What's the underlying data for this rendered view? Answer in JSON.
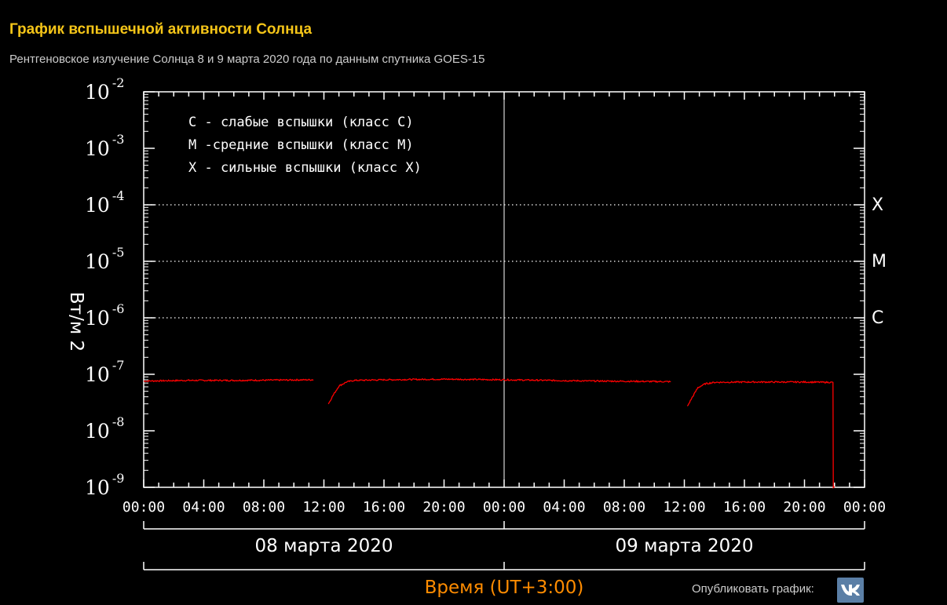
{
  "page": {
    "title": "График вспышечной активности Солнца",
    "subtitle": "Рентгеновское излучение Солнца 8 и 9 марта 2020 года по данным спутника GOES-15",
    "publish_label": "Опубликовать график:",
    "vk_icon": "vk-icon"
  },
  "colors": {
    "title": "#f5c518",
    "background": "#000000",
    "axes": "#ffffff",
    "series": "#ff0000",
    "time_label": "#ff8c00",
    "vk_button": "#5b7fa6"
  },
  "chart_data": {
    "type": "line",
    "y_scale": "log",
    "ylim": [
      1e-09,
      0.01
    ],
    "ylabel": "Вт/м 2",
    "y_ticks": [
      {
        "base": "10",
        "exp": "-2"
      },
      {
        "base": "10",
        "exp": "-3"
      },
      {
        "base": "10",
        "exp": "-4"
      },
      {
        "base": "10",
        "exp": "-5"
      },
      {
        "base": "10",
        "exp": "-6"
      },
      {
        "base": "10",
        "exp": "-7"
      },
      {
        "base": "10",
        "exp": "-8"
      },
      {
        "base": "10",
        "exp": "-9"
      }
    ],
    "xlim_hours": [
      0,
      48
    ],
    "x_ticks": [
      "00:00",
      "04:00",
      "08:00",
      "12:00",
      "16:00",
      "20:00",
      "00:00",
      "04:00",
      "08:00",
      "12:00",
      "16:00",
      "20:00",
      "00:00"
    ],
    "day_labels": [
      "08 марта 2020",
      "09 марта 2020"
    ],
    "xlabel": "Время (UT+3:00)",
    "legend": [
      "C - слабые вспышки (класс C)",
      "M -средние вспышки (класс M)",
      "X - сильные вспышки (класс X)"
    ],
    "class_levels": [
      {
        "label": "X",
        "value": 0.0001
      },
      {
        "label": "M",
        "value": 1e-05
      },
      {
        "label": "C",
        "value": 1e-06
      }
    ],
    "series": [
      {
        "segments": [
          {
            "x": [
              0,
              3,
              6,
              9,
              11.3
            ],
            "y": [
              7.6e-08,
              7.8e-08,
              7.8e-08,
              7.9e-08,
              8e-08
            ]
          },
          {
            "x": [
              12.3,
              12.6,
              13.0,
              13.5,
              14,
              16,
              18,
              20,
              22,
              24,
              27,
              30,
              33,
              35.1
            ],
            "y": [
              3e-08,
              4.2e-08,
              6.2e-08,
              7.3e-08,
              7.8e-08,
              8e-08,
              8.1e-08,
              8.2e-08,
              8.1e-08,
              8e-08,
              7.8e-08,
              7.6e-08,
              7.5e-08,
              7.4e-08
            ]
          },
          {
            "x": [
              36.2,
              36.5,
              36.9,
              37.4,
              38,
              40,
              42,
              44,
              45.9,
              45.92,
              46.0
            ],
            "y": [
              2.7e-08,
              3.8e-08,
              5.8e-08,
              6.8e-08,
              7.2e-08,
              7.3e-08,
              7.3e-08,
              7.3e-08,
              7.2e-08,
              1e-09,
              1e-09
            ]
          }
        ]
      }
    ]
  }
}
